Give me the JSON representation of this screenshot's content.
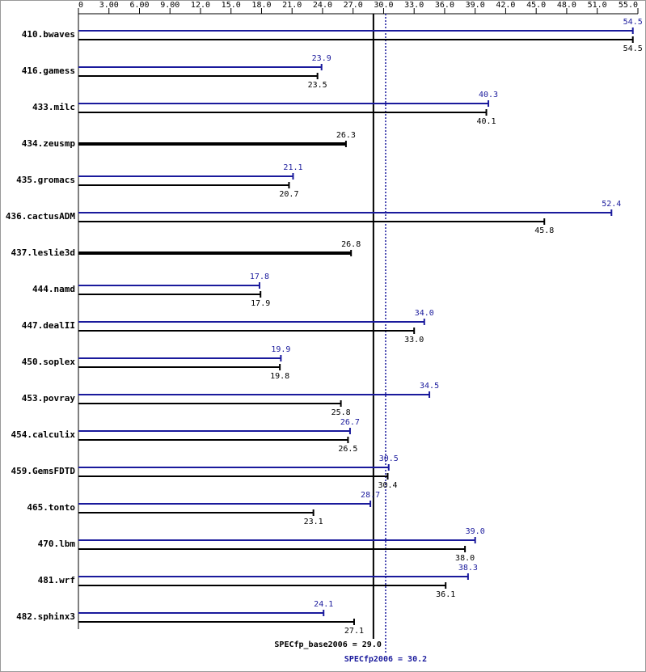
{
  "chart_data": {
    "type": "bar",
    "categories": [
      "410.bwaves",
      "416.gamess",
      "433.milc",
      "434.zeusmp",
      "435.gromacs",
      "436.cactusADM",
      "437.leslie3d",
      "444.namd",
      "447.dealII",
      "450.soplex",
      "453.povray",
      "454.calculix",
      "459.GemsFDTD",
      "465.tonto",
      "470.lbm",
      "481.wrf",
      "482.sphinx3"
    ],
    "series": [
      {
        "color": "#1a1a9c",
        "values": [
          54.5,
          23.9,
          40.3,
          null,
          21.1,
          52.4,
          null,
          17.8,
          34.0,
          19.9,
          34.5,
          26.7,
          30.5,
          28.7,
          39.0,
          38.3,
          24.1
        ],
        "value_labels": [
          "54.5",
          "23.9",
          "40.3",
          null,
          "21.1",
          "52.4",
          null,
          "17.8",
          "34.0",
          "19.9",
          "34.5",
          "26.7",
          "30.5",
          "28.7",
          "39.0",
          "38.3",
          "24.1"
        ]
      },
      {
        "color": "#000000",
        "values": [
          54.5,
          23.5,
          40.1,
          26.3,
          20.7,
          45.8,
          26.8,
          17.9,
          33.0,
          19.8,
          25.8,
          26.5,
          30.4,
          23.1,
          38.0,
          36.1,
          27.1
        ],
        "value_labels": [
          "54.5",
          "23.5",
          "40.1",
          "26.3",
          "20.7",
          "45.8",
          "26.8",
          "17.9",
          "33.0",
          "19.8",
          "25.8",
          "26.5",
          "30.4",
          "23.1",
          "38.0",
          "36.1",
          "27.1"
        ]
      }
    ],
    "xlim": [
      0,
      55
    ],
    "xticks": [
      0,
      {
        "value": 3,
        "label": "3.00"
      },
      {
        "value": 6,
        "label": "6.00"
      },
      {
        "value": 9,
        "label": "9.00"
      },
      {
        "value": 12,
        "label": "12.0"
      },
      {
        "value": 15,
        "label": "15.0"
      },
      {
        "value": 18,
        "label": "18.0"
      },
      {
        "value": 21,
        "label": "21.0"
      },
      {
        "value": 24,
        "label": "24.0"
      },
      {
        "value": 27,
        "label": "27.0"
      },
      {
        "value": 30,
        "label": "30.0"
      },
      {
        "value": 33,
        "label": "33.0"
      },
      {
        "value": 36,
        "label": "36.0"
      },
      {
        "value": 39,
        "label": "39.0"
      },
      {
        "value": 42,
        "label": "42.0"
      },
      {
        "value": 45,
        "label": "45.0"
      },
      {
        "value": 48,
        "label": "48.0"
      },
      {
        "value": 51,
        "label": "51.0"
      },
      {
        "value": 55,
        "label": "55.0"
      }
    ],
    "reference_lines": [
      {
        "value": 29.0,
        "label": "SPECfp_base2006 = 29.0",
        "color": "#000000",
        "style": "solid"
      },
      {
        "value": 30.2,
        "label": "SPECfp2006 = 30.2",
        "color": "#1a1a9c",
        "style": "dotted"
      }
    ]
  }
}
